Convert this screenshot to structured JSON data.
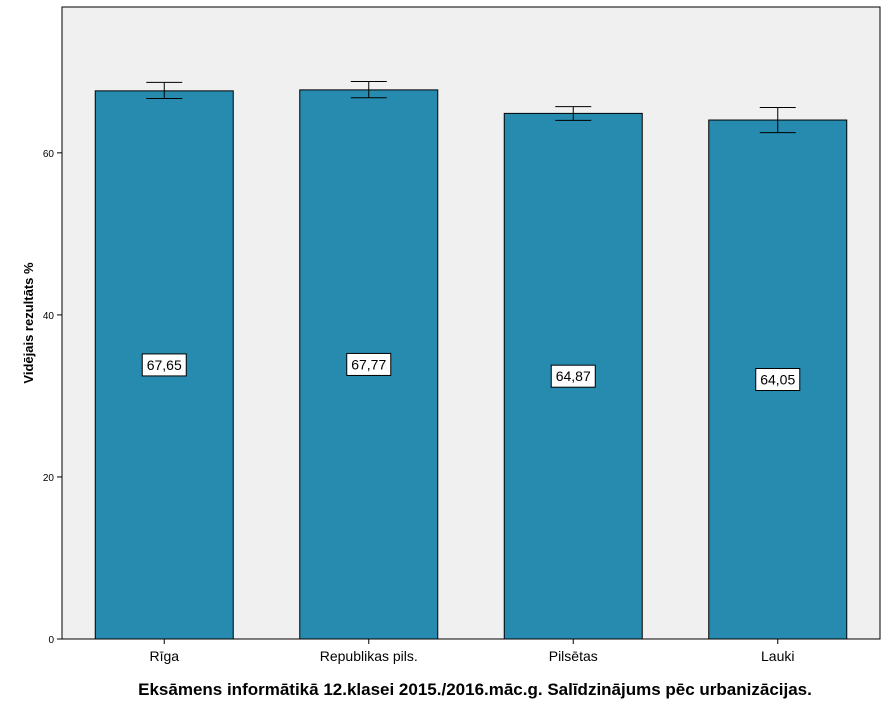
{
  "chart_data": {
    "type": "bar",
    "title": "",
    "xlabel": "Eksāmens informātikā 12.klasei 2015./2016.māc.g. Salīdzinājums pēc urbanizācijas.",
    "ylabel": "Vidējais rezultāts %",
    "categories": [
      "Rīga",
      "Republikas pils.",
      "Pilsētas",
      "Lauki"
    ],
    "values": [
      67.65,
      67.77,
      64.87,
      64.05
    ],
    "value_labels": [
      "67,65",
      "67,77",
      "64,87",
      "64,05"
    ],
    "error_low": [
      66.7,
      66.8,
      64.0,
      62.5
    ],
    "error_high": [
      68.7,
      68.8,
      65.7,
      65.6
    ],
    "ylim": [
      0,
      78
    ],
    "yticks": [
      0,
      20,
      40,
      60
    ],
    "grid": false,
    "colors": {
      "bar": "#268BAF",
      "plot_background": "#F0F0F0",
      "axis": "#000000"
    }
  }
}
